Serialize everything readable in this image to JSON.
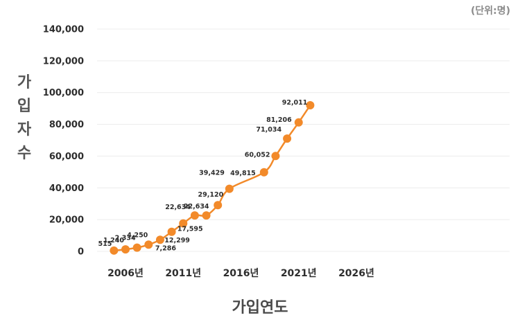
{
  "chart_data": {
    "type": "line",
    "unit_note": "(단위:명)",
    "xlabel": "가입연도",
    "ylabel": "가입자수",
    "ylim": [
      0,
      140000
    ],
    "y_ticks": [
      "0",
      "20,000",
      "40,000",
      "60,000",
      "80,000",
      "100,000",
      "120,000",
      "140,000"
    ],
    "x_ticks": [
      "2006년",
      "2011년",
      "2016년",
      "2021년",
      "2026년"
    ],
    "grid": true,
    "color": "#f28a2a",
    "points": [
      {
        "x": 2005,
        "y": 515,
        "label": "515"
      },
      {
        "x": 2006,
        "y": 1240,
        "label": "1,240"
      },
      {
        "x": 2007,
        "y": 2334,
        "label": "2,334"
      },
      {
        "x": 2008,
        "y": 4250,
        "label": "4,250"
      },
      {
        "x": 2009,
        "y": 7286,
        "label": "7,286"
      },
      {
        "x": 2010,
        "y": 12299,
        "label": "12,299"
      },
      {
        "x": 2011,
        "y": 17595,
        "label": "17,595"
      },
      {
        "x": 2012,
        "y": 22634,
        "label": "22,634"
      },
      {
        "x": 2013,
        "y": 22634,
        "label": "22,634"
      },
      {
        "x": 2014,
        "y": 29120,
        "label": "29,120"
      },
      {
        "x": 2015,
        "y": 39429,
        "label": "39,429"
      },
      {
        "x": 2018,
        "y": 49815,
        "label": "49,815"
      },
      {
        "x": 2019,
        "y": 60052,
        "label": "60,052"
      },
      {
        "x": 2020,
        "y": 71034,
        "label": "71,034"
      },
      {
        "x": 2021,
        "y": 81206,
        "label": "81,206"
      },
      {
        "x": 2022,
        "y": 92011,
        "label": "92,011"
      }
    ]
  }
}
